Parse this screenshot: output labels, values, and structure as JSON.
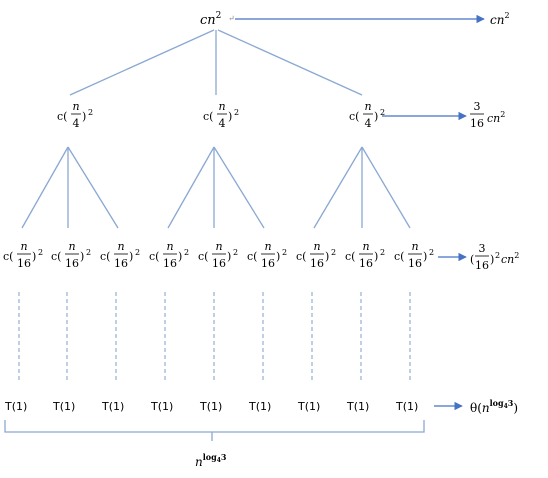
{
  "tree": {
    "root": {
      "c": "c",
      "n": "n",
      "exp": "2"
    },
    "level1": {
      "coef": "c(",
      "num": "n",
      "den": "4",
      "close": ")",
      "exp": "2",
      "count": 3
    },
    "level2": {
      "coef": "c(",
      "num": "n",
      "den": "16",
      "close": ")",
      "exp": "2",
      "count": 9
    },
    "leaves": {
      "label": "T(1)",
      "count": 9
    }
  },
  "level_costs": {
    "level0": {
      "text": "cn",
      "exp": "2"
    },
    "level1": {
      "num": "3",
      "den": "16",
      "suffix": "cn",
      "exp": "2"
    },
    "level2": {
      "open": "(",
      "num": "3",
      "den": "16",
      "close": ")",
      "exp": "2",
      "suffix": "cn",
      "exp2": "2"
    },
    "leaves": {
      "theta": "θ(",
      "base": "n",
      "exp": "log",
      "exp_sub": "4",
      "exp_val": "3",
      "close": ")"
    }
  },
  "brace_label": {
    "base": "n",
    "exp": "log",
    "exp_sub": "4",
    "exp_val": "3"
  },
  "colors": {
    "tree_lines": "#8aa8d2",
    "arrows": "#4472c4"
  }
}
